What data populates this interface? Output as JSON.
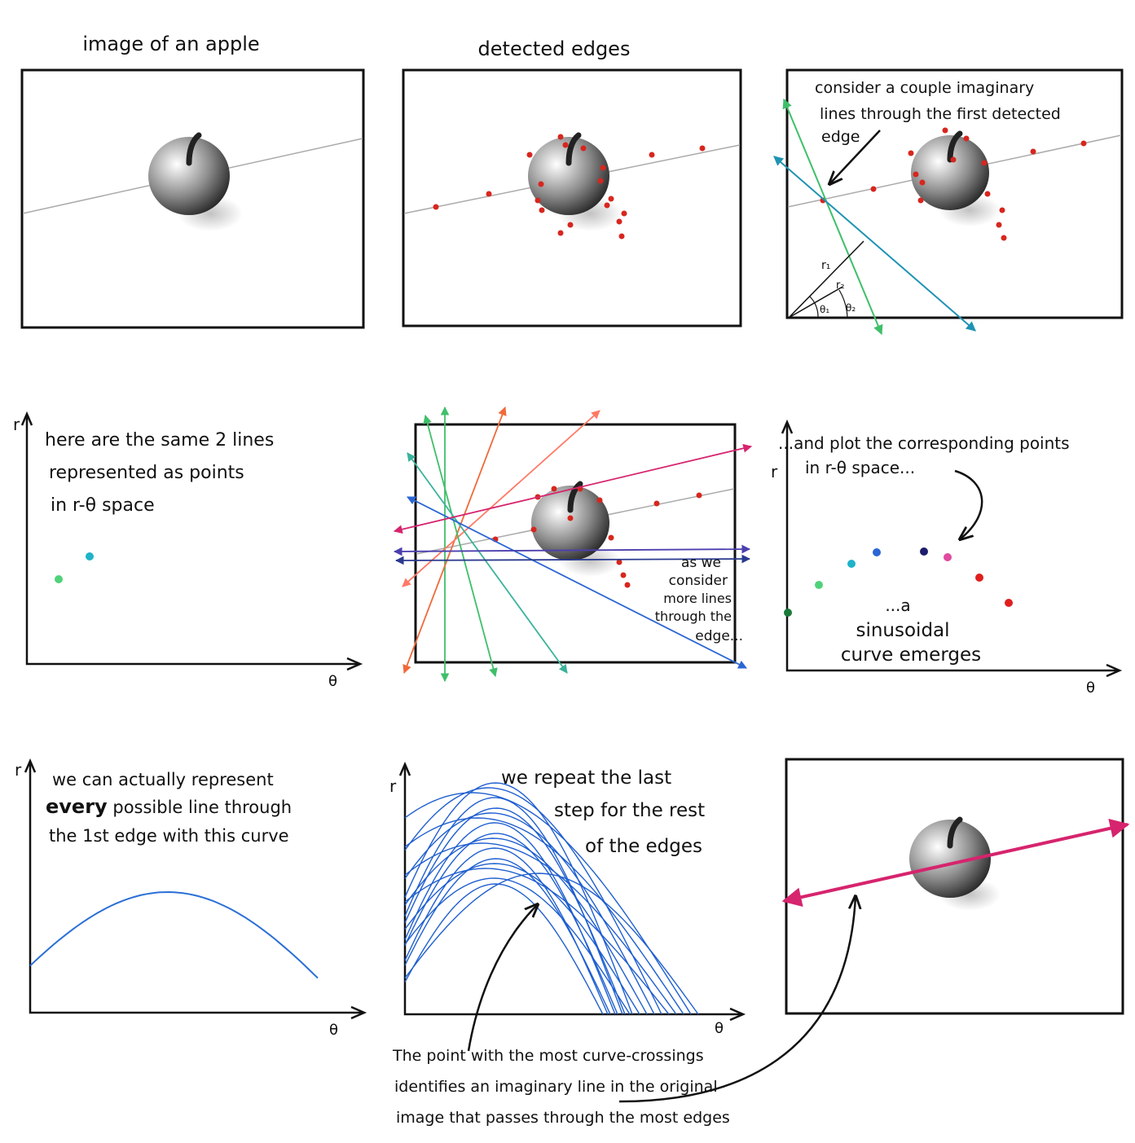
{
  "panels": {
    "p1": {
      "title": "image of an apple"
    },
    "p2": {
      "title": "detected edges"
    },
    "p3": {
      "note_lines": [
        "consider a couple imaginary",
        "lines through the first detected",
        "edge"
      ],
      "symbols": {
        "r1": "r₁",
        "r2": "r₂",
        "t1": "θ₁",
        "t2": "θ₂"
      }
    },
    "p4": {
      "note_lines": [
        "here are the same 2 lines",
        "represented as points",
        "in  r-θ  space"
      ],
      "ylabel": "r",
      "xlabel": "θ"
    },
    "p5": {
      "note_lines": [
        "as we",
        "consider",
        "more lines",
        "through the",
        "edge..."
      ]
    },
    "p6": {
      "top_lines": [
        "...and plot the corresponding points",
        "in  r-θ space..."
      ],
      "bottom_lines": [
        "...a",
        "sinusoidal",
        "curve emerges"
      ],
      "ylabel": "r",
      "xlabel": "θ"
    },
    "p7": {
      "line1": "we can actually represent",
      "bold": "every",
      "line2_rest": " possible  line through",
      "line3": "the 1st edge with this curve",
      "ylabel": "r",
      "xlabel": "θ"
    },
    "p8": {
      "note_lines": [
        "we repeat the last",
        "step for the rest",
        "of the edges"
      ],
      "ylabel": "r",
      "xlabel": "θ"
    },
    "caption": {
      "lines": [
        "The point with the most curve-crossings",
        "identifies an imaginary line in the original",
        "image that passes through the most edges"
      ]
    }
  },
  "colors": {
    "edge_dot": "#d7261e",
    "green": "#3fbf6a",
    "teal": "#1f93b3",
    "blue": "#2a66d4",
    "magenta": "#d6246e",
    "orange": "#f06a3a",
    "ink": "#111111"
  }
}
